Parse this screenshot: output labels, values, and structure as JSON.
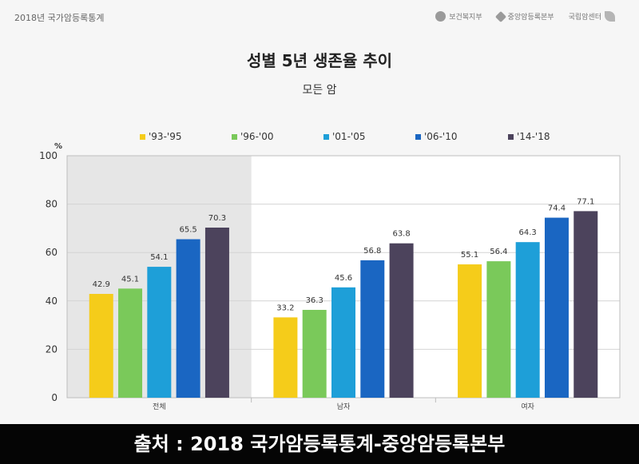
{
  "header": {
    "report_label": "2018년 국가암등록통계",
    "logos": [
      {
        "label": "보건복지부",
        "icon": "government-emblem-icon"
      },
      {
        "label": "중앙암등록본부",
        "icon": "diamond-icon"
      },
      {
        "label": "국립암센터",
        "icon": "leaf-icon"
      }
    ]
  },
  "footer": {
    "text": "출처 : 2018 국가암등록통계-중앙암등록본부"
  },
  "chart_data": {
    "type": "bar",
    "title": "성별 5년 생존율 추이",
    "subtitle": "모든 암",
    "ylabel": "%",
    "ylim": [
      0,
      100
    ],
    "yticks": [
      0,
      20,
      40,
      60,
      80,
      100
    ],
    "grid": true,
    "legend_position": "top",
    "highlighted_group": "전체",
    "categories": [
      "전체",
      "남자",
      "여자"
    ],
    "series": [
      {
        "name": "'93-'95",
        "color": "#f5cc1a",
        "values": [
          42.9,
          33.2,
          55.1
        ],
        "labels": [
          "42.9",
          "33.2",
          "55.1"
        ]
      },
      {
        "name": "'96-'00",
        "color": "#7ac95a",
        "values": [
          45.1,
          36.3,
          56.4
        ],
        "labels": [
          "45.1",
          "36.3",
          "56.4"
        ]
      },
      {
        "name": "'01-'05",
        "color": "#1e9fd8",
        "values": [
          54.1,
          45.6,
          64.3
        ],
        "labels": [
          "54.1",
          "45.6",
          "64.3"
        ]
      },
      {
        "name": "'06-'10",
        "color": "#1a66c2",
        "values": [
          65.5,
          56.8,
          74.4
        ],
        "labels": [
          "65.5",
          "56.8",
          "74.4"
        ]
      },
      {
        "name": "'14-'18",
        "color": "#4c435c",
        "values": [
          70.3,
          63.8,
          77.1
        ],
        "labels": [
          "70.3",
          "63.8",
          "77.1"
        ]
      }
    ]
  }
}
